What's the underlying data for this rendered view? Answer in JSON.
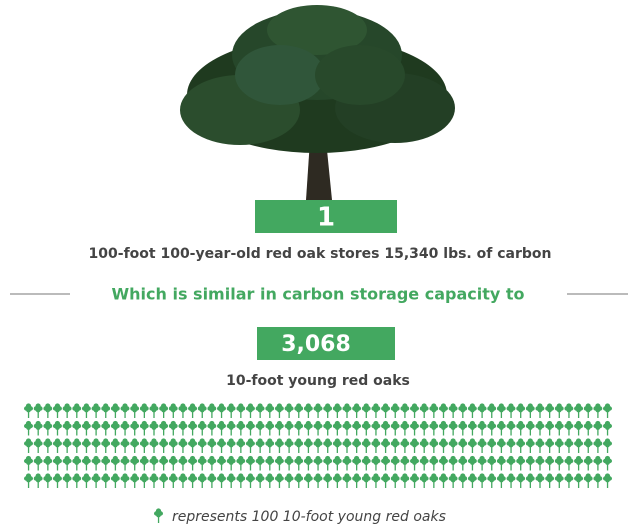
{
  "tree": {
    "count": "1",
    "description": "100-foot 100-year-old red oak stores 15,340 lbs. of carbon"
  },
  "comparison": "Which is similar in carbon storage capacity to",
  "young": {
    "count": "3,068",
    "description": "10-foot young red oaks"
  },
  "legend": "represents 100 10-foot young red oaks"
}
